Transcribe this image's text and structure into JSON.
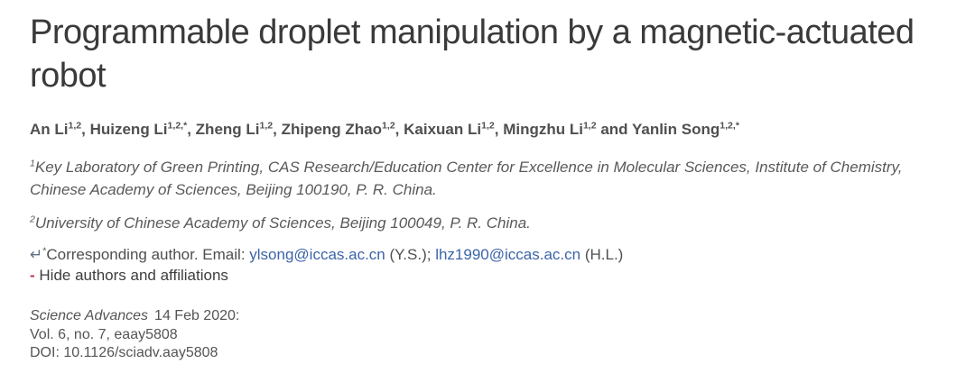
{
  "article": {
    "title": "Programmable droplet manipulation by a magnetic-actuated robot",
    "authors": [
      {
        "pre": "",
        "name": "An Li",
        "sup": "1,2"
      },
      {
        "pre": ", ",
        "name": "Huizeng Li",
        "sup": "1,2,*"
      },
      {
        "pre": ", ",
        "name": "Zheng Li",
        "sup": "1,2"
      },
      {
        "pre": ", ",
        "name": "Zhipeng Zhao",
        "sup": "1,2"
      },
      {
        "pre": ", ",
        "name": "Kaixuan Li",
        "sup": "1,2"
      },
      {
        "pre": ", ",
        "name": "Mingzhu Li",
        "sup": "1,2"
      },
      {
        "pre": " and ",
        "name": "Yanlin Song",
        "sup": "1,2,*"
      }
    ],
    "affiliations": [
      {
        "sup": "1",
        "text": "Key Laboratory of Green Printing, CAS Research/Education Center for Excellence in Molecular Sciences, Institute of Chemistry, Chinese Academy of Sciences, Beijing 100190, P. R. China."
      },
      {
        "sup": "2",
        "text": "University of Chinese Academy of Sciences, Beijing 100049, P. R. China."
      }
    ],
    "corresponding": {
      "arrow": "↵",
      "sup": "*",
      "label": "Corresponding author. Email: ",
      "email1": "ylsong@iccas.ac.cn",
      "between": " (Y.S.); ",
      "email2": "lhz1990@iccas.ac.cn",
      "after": " (H.L.)"
    },
    "hide_toggle": {
      "minus": "-",
      "label": "Hide authors and affiliations"
    },
    "citation": {
      "journal": "Science Advances",
      "date": "14 Feb 2020:",
      "volume_line": "Vol. 6, no. 7, eaay5808",
      "doi_line": "DOI: 10.1126/sciadv.aay5808"
    }
  },
  "colors": {
    "background": "#ffffff",
    "title_text": "#3a3a3a",
    "body_text": "#4f4f4f",
    "affiliation_text": "#595959",
    "link_blue": "#3c64a8",
    "return_arrow": "#5f6f85",
    "hide_minus_red": "#bd2f45",
    "citation_text": "#555555"
  }
}
